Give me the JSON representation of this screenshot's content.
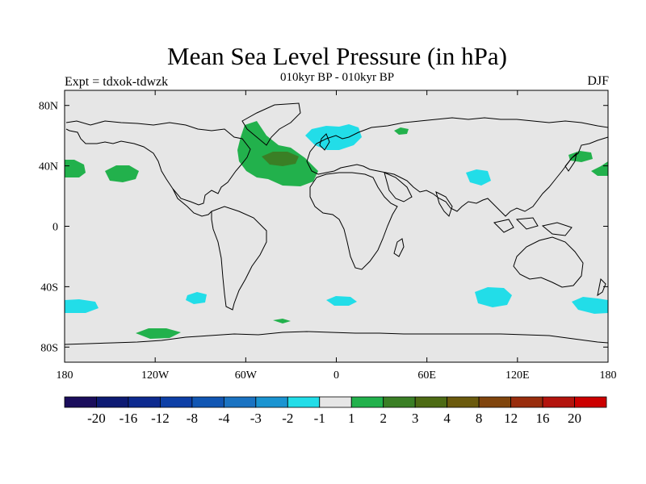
{
  "title": "Mean Sea Level Pressure (in hPa)",
  "subtitle": "010kyr BP - 010kyr BP",
  "experiment_label": "Expt = tdxok-tdwzk",
  "season_label": "DJF",
  "colors": {
    "background_land_ocean": "#e6e6e6",
    "coastline": "#000000",
    "positive_1_2": "#22b14c",
    "positive_2_3": "#3a7f25",
    "negative_1_2": "#22dde8"
  },
  "axes": {
    "x_ticks": [
      {
        "value": -180,
        "label": "180"
      },
      {
        "value": -120,
        "label": "120W"
      },
      {
        "value": -60,
        "label": "60W"
      },
      {
        "value": 0,
        "label": "0"
      },
      {
        "value": 60,
        "label": "60E"
      },
      {
        "value": 120,
        "label": "120E"
      },
      {
        "value": 180,
        "label": "180"
      }
    ],
    "y_ticks": [
      {
        "value": 80,
        "label": "80N"
      },
      {
        "value": 40,
        "label": "40N"
      },
      {
        "value": 0,
        "label": "0"
      },
      {
        "value": -40,
        "label": "40S"
      },
      {
        "value": -80,
        "label": "80S"
      }
    ],
    "xlim": [
      -180,
      180
    ],
    "ylim": [
      -90,
      90
    ]
  },
  "colorbar": {
    "colors": [
      "#1a0d5c",
      "#0d1a73",
      "#0d2a8f",
      "#0d3fa6",
      "#1156b3",
      "#1a73c2",
      "#1a94d1",
      "#22dde8",
      "#e6e6e6",
      "#22b14c",
      "#3a7f25",
      "#4d6b14",
      "#6b5a0d",
      "#80450d",
      "#992d0d",
      "#b3140d",
      "#cc0000"
    ],
    "labels": [
      "-20",
      "-16",
      "-12",
      "-8",
      "-4",
      "-3",
      "-2",
      "-1",
      "1",
      "2",
      "3",
      "4",
      "8",
      "12",
      "16",
      "20"
    ]
  },
  "chart_data": {
    "type": "heatmap",
    "title": "Mean Sea Level Pressure (in hPa)",
    "subtitle": "010kyr BP - 010kyr BP",
    "xlim": [
      -180,
      180
    ],
    "ylim": [
      -90,
      90
    ],
    "anomaly_regions": [
      {
        "name": "North Atlantic",
        "level": "1 to 2",
        "color": "#22b14c",
        "center": [
          -40,
          45
        ]
      },
      {
        "name": "North Atlantic core",
        "level": "2 to 3",
        "color": "#3a7f25",
        "center": [
          -37,
          45
        ]
      },
      {
        "name": "Northern Europe",
        "level": "-1 to -2",
        "color": "#22dde8",
        "center": [
          5,
          60
        ]
      },
      {
        "name": "North Pacific east",
        "level": "1 to 2",
        "color": "#22b14c",
        "center": [
          -145,
          35
        ]
      },
      {
        "name": "Central Asia",
        "level": "-1 to -2",
        "color": "#22dde8",
        "center": [
          95,
          33
        ]
      },
      {
        "name": "Southern Ocean Indian",
        "level": "-1 to -2",
        "color": "#22dde8",
        "center": [
          100,
          -48
        ]
      },
      {
        "name": "Southern Ocean South Atlantic",
        "level": "-1 to -2",
        "color": "#22dde8",
        "center": [
          -5,
          -50
        ]
      },
      {
        "name": "Southern Ocean Pacific",
        "level": "1 to 2",
        "color": "#22b14c",
        "center": [
          -120,
          -72
        ]
      }
    ]
  }
}
